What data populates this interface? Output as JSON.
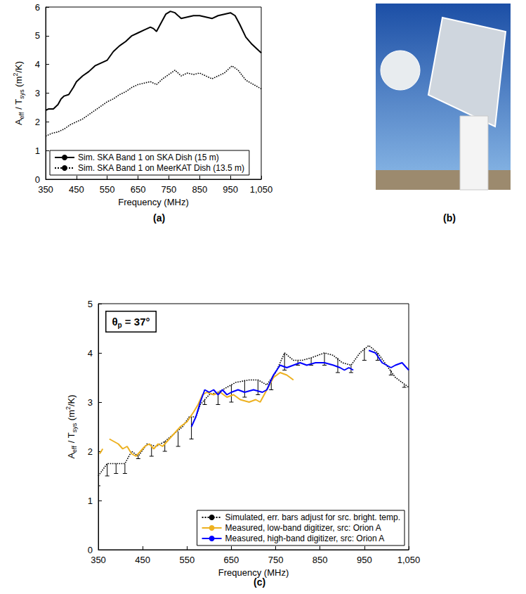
{
  "chart_data": [
    {
      "type": "line",
      "panel": "(a)",
      "xlabel": "Frequency (MHz)",
      "ylabel": [
        {
          "text": "A"
        },
        {
          "sub": "eff"
        },
        {
          "text": " / T"
        },
        {
          "sub": "sys"
        },
        {
          "text": " (m"
        },
        {
          "sup": "2"
        },
        {
          "text": "/K)"
        }
      ],
      "xlim": [
        350,
        1050
      ],
      "xticks": [
        350,
        450,
        550,
        650,
        750,
        850,
        950,
        1050
      ],
      "ylim": [
        0,
        6
      ],
      "yticks": [
        0,
        1,
        2,
        3,
        4,
        5,
        6
      ],
      "grid": false,
      "legend": "lower left",
      "series": [
        {
          "name": "Sim. SKA Band 1 on SKA Dish (15 m)",
          "color": "#000000",
          "line_style": "solid",
          "x": [
            350,
            360,
            375,
            390,
            400,
            410,
            425,
            440,
            450,
            470,
            490,
            510,
            530,
            550,
            570,
            590,
            610,
            630,
            650,
            670,
            690,
            700,
            710,
            720,
            740,
            755,
            770,
            790,
            810,
            830,
            850,
            870,
            890,
            910,
            930,
            950,
            965,
            980,
            1000,
            1020,
            1050
          ],
          "values": [
            2.4,
            2.45,
            2.45,
            2.6,
            2.8,
            2.9,
            2.95,
            3.2,
            3.4,
            3.6,
            3.75,
            3.95,
            4.05,
            4.15,
            4.45,
            4.65,
            4.8,
            5.0,
            5.1,
            5.2,
            5.3,
            5.25,
            5.15,
            5.35,
            5.75,
            5.85,
            5.8,
            5.6,
            5.65,
            5.7,
            5.7,
            5.65,
            5.6,
            5.7,
            5.75,
            5.8,
            5.7,
            5.4,
            4.95,
            4.7,
            4.4
          ]
        },
        {
          "name": "Sim. SKA Band 1 on MeerKAT Dish (13.5 m)",
          "color": "#000000",
          "line_style": "dotted",
          "x": [
            350,
            370,
            390,
            410,
            430,
            450,
            470,
            490,
            510,
            530,
            550,
            570,
            590,
            610,
            630,
            650,
            670,
            690,
            710,
            730,
            750,
            770,
            790,
            810,
            830,
            850,
            870,
            890,
            910,
            930,
            955,
            975,
            1000,
            1025,
            1050
          ],
          "values": [
            1.5,
            1.6,
            1.65,
            1.75,
            1.9,
            2.0,
            2.1,
            2.25,
            2.4,
            2.55,
            2.7,
            2.8,
            2.95,
            3.05,
            3.2,
            3.3,
            3.35,
            3.4,
            3.3,
            3.5,
            3.65,
            3.8,
            3.6,
            3.7,
            3.65,
            3.7,
            3.6,
            3.5,
            3.6,
            3.7,
            3.95,
            3.8,
            3.45,
            3.3,
            3.15
          ]
        }
      ]
    },
    {
      "type": "line",
      "panel": "(c)",
      "xlabel": "Frequency (MHz)",
      "ylabel": [
        {
          "text": "A"
        },
        {
          "sub": "eff"
        },
        {
          "text": " / T"
        },
        {
          "sub": "sys"
        },
        {
          "text": " (m"
        },
        {
          "sup": "2"
        },
        {
          "text": "/K)"
        }
      ],
      "annotation": {
        "symbol": "θ",
        "subscript": "p",
        "text": "= 37°"
      },
      "xlim": [
        350,
        1050
      ],
      "xticks": [
        350,
        450,
        550,
        650,
        750,
        850,
        950,
        1050
      ],
      "ylim": [
        0,
        5
      ],
      "yticks": [
        0,
        1,
        2,
        3,
        4,
        5
      ],
      "grid": false,
      "legend": "lower right",
      "series": [
        {
          "name": "Simulated, err. bars adjust for src. bright. temp.",
          "color": "#000000",
          "line_style": "dotted",
          "x": [
            350,
            370,
            390,
            410,
            425,
            440,
            460,
            480,
            500,
            520,
            540,
            555,
            570,
            580,
            600,
            620,
            640,
            660,
            690,
            710,
            730,
            750,
            770,
            790,
            810,
            830,
            860,
            880,
            900,
            920,
            940,
            960,
            980,
            1000,
            1020,
            1050
          ],
          "values": [
            1.5,
            1.75,
            1.75,
            1.75,
            2.0,
            1.9,
            2.15,
            2.1,
            2.2,
            2.35,
            2.5,
            2.7,
            2.7,
            2.95,
            3.15,
            3.2,
            3.3,
            3.4,
            3.45,
            3.45,
            3.35,
            3.6,
            4.0,
            3.85,
            3.85,
            3.9,
            4.0,
            3.95,
            3.8,
            3.75,
            4.0,
            4.15,
            4.0,
            3.75,
            3.5,
            3.3
          ],
          "error_bars": {
            "x": [
              350,
              370,
              390,
              410,
              440,
              470,
              500,
              530,
              560,
              590,
              620,
              650,
              680,
              710,
              740,
              770,
              800,
              830,
              860,
              890,
              920,
              950,
              980,
              1010,
              1040
            ],
            "low": [
              1.3,
              1.5,
              1.55,
              1.55,
              1.85,
              1.9,
              2.0,
              2.1,
              2.25,
              2.95,
              2.95,
              3.0,
              3.1,
              3.15,
              3.25,
              3.65,
              3.75,
              3.75,
              3.75,
              3.6,
              3.6,
              3.85,
              3.85,
              3.55,
              3.3
            ],
            "high": [
              1.5,
              1.75,
              1.75,
              1.75,
              1.9,
              2.1,
              2.2,
              2.4,
              2.7,
              3.05,
              3.2,
              3.35,
              3.45,
              3.45,
              3.4,
              4.0,
              3.85,
              3.9,
              4.0,
              3.9,
              3.75,
              4.1,
              4.0,
              3.65,
              3.35
            ]
          }
        },
        {
          "name": "Measured, low-band digitizer, src: Orion A",
          "color": "#edb120",
          "line_style": "solid",
          "x": [
            353,
            360,
            366,
            375,
            385,
            395,
            405,
            415,
            425,
            435,
            445,
            455,
            465,
            475,
            485,
            495,
            505,
            520,
            535,
            550,
            565,
            575,
            585,
            595,
            610,
            625,
            640,
            655,
            670,
            690,
            705,
            715,
            730,
            745,
            760,
            775,
            790
          ],
          "values": [
            1.95,
            2.05,
            null,
            2.25,
            2.2,
            2.15,
            2.05,
            2.1,
            1.95,
            1.9,
            2.0,
            2.1,
            2.15,
            2.05,
            2.15,
            2.1,
            2.2,
            2.35,
            2.5,
            2.6,
            2.8,
            2.95,
            3.15,
            3.2,
            3.15,
            3.2,
            3.1,
            3.15,
            3.05,
            3.0,
            3.05,
            3.0,
            3.25,
            3.5,
            3.6,
            3.55,
            3.45
          ]
        },
        {
          "name": "Measured, high-band digitizer, src: Orion A",
          "color": "#0000ff",
          "line_style": "solid",
          "x": [
            560,
            570,
            580,
            590,
            600,
            610,
            620,
            630,
            640,
            650,
            665,
            680,
            700,
            720,
            730,
            745,
            760,
            775,
            790,
            805,
            820,
            840,
            860,
            880,
            895,
            905,
            915,
            925,
            940,
            960,
            975,
            990,
            1000,
            1010,
            1020,
            1035,
            1045,
            1050
          ],
          "values": [
            2.5,
            2.7,
            3.0,
            3.25,
            3.2,
            3.25,
            3.15,
            3.25,
            3.15,
            3.2,
            3.25,
            3.2,
            3.25,
            3.2,
            3.25,
            3.55,
            3.75,
            3.7,
            3.75,
            3.8,
            3.75,
            3.8,
            3.8,
            3.75,
            3.7,
            3.65,
            3.7,
            3.65,
            null,
            4.05,
            4.0,
            3.8,
            3.75,
            3.7,
            3.75,
            3.8,
            3.7,
            3.65
          ]
        }
      ]
    }
  ],
  "photo": {
    "panel": "(b)"
  }
}
